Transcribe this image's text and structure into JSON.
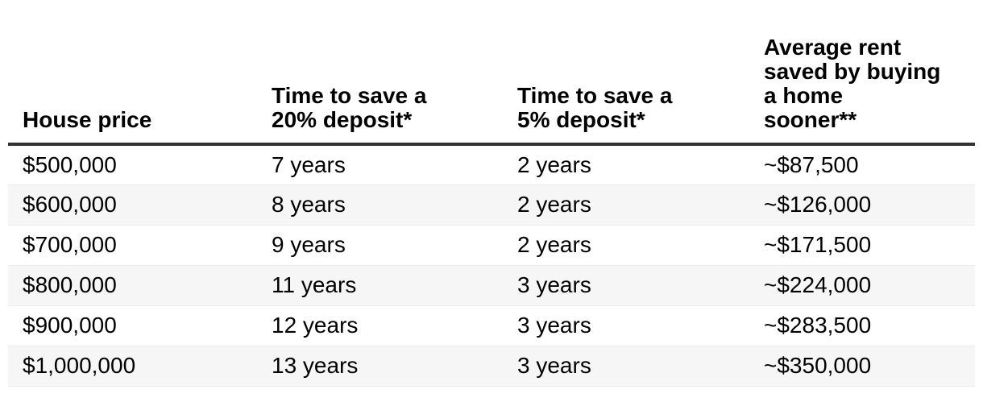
{
  "chart_data": {
    "type": "table",
    "title": "",
    "columns": [
      {
        "label": "House price",
        "lines": [
          "House price"
        ]
      },
      {
        "label": "Time to save a 20% deposit*",
        "lines": [
          "Time to save a",
          "20% deposit*"
        ]
      },
      {
        "label": "Time to save a 5% deposit*",
        "lines": [
          "Time to save a",
          "5% deposit*"
        ]
      },
      {
        "label": "Average rent saved by buying a home sooner**",
        "lines": [
          "Average rent",
          "saved by buying",
          "a home",
          "sooner**"
        ]
      }
    ],
    "rows": [
      [
        "$500,000",
        "7 years",
        "2 years",
        "~$87,500"
      ],
      [
        "$600,000",
        "8 years",
        "2 years",
        "~$126,000"
      ],
      [
        "$700,000",
        "9 years",
        "2 years",
        "~$171,500"
      ],
      [
        "$800,000",
        "11 years",
        "3 years",
        "~$224,000"
      ],
      [
        "$900,000",
        "12 years",
        "3 years",
        "~$283,500"
      ],
      [
        "$1,000,000",
        "13 years",
        "3 years",
        "~$350,000"
      ]
    ],
    "layout_hints": {
      "zebra_striping": true,
      "stripe_color": "#f6f6f6",
      "header_rule_color": "#333333",
      "row_divider_color": "#ebebeb",
      "text_color": "#000000"
    }
  }
}
